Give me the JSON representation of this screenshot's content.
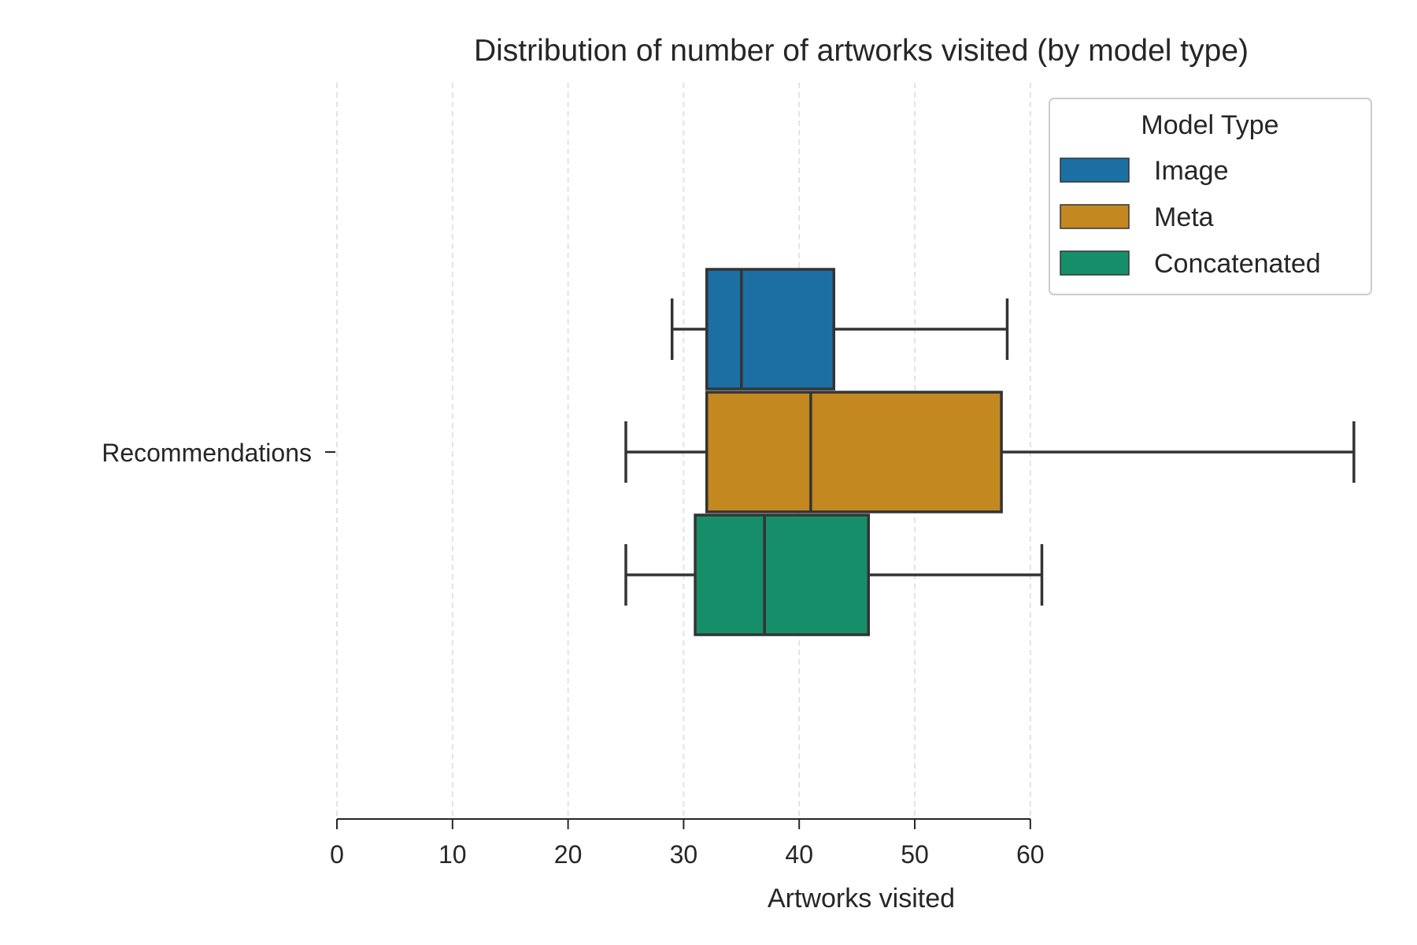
{
  "chart_data": {
    "type": "boxplot",
    "orientation": "horizontal",
    "title": "Distribution of number of artworks visited (by model type)",
    "xlabel": "Artworks visited",
    "ylabel": "",
    "category": "Recommendations",
    "xlim": [
      0,
      88
    ],
    "xticks": [
      0,
      10,
      20,
      30,
      40,
      50,
      60
    ],
    "grid": "vertical dashed",
    "legend": {
      "title": "Model Type",
      "position": "top-right"
    },
    "series": [
      {
        "name": "Image",
        "color": "#1b6fa3",
        "whisker_low": 29,
        "q1": 32,
        "median": 35,
        "q3": 43,
        "whisker_high": 58
      },
      {
        "name": "Meta",
        "color": "#c38820",
        "whisker_low": 25,
        "q1": 32,
        "median": 41,
        "q3": 57.5,
        "whisker_high": 88
      },
      {
        "name": "Concatenated",
        "color": "#178e6a",
        "whisker_low": 25,
        "q1": 31,
        "median": 37,
        "q3": 46,
        "whisker_high": 61
      }
    ]
  }
}
